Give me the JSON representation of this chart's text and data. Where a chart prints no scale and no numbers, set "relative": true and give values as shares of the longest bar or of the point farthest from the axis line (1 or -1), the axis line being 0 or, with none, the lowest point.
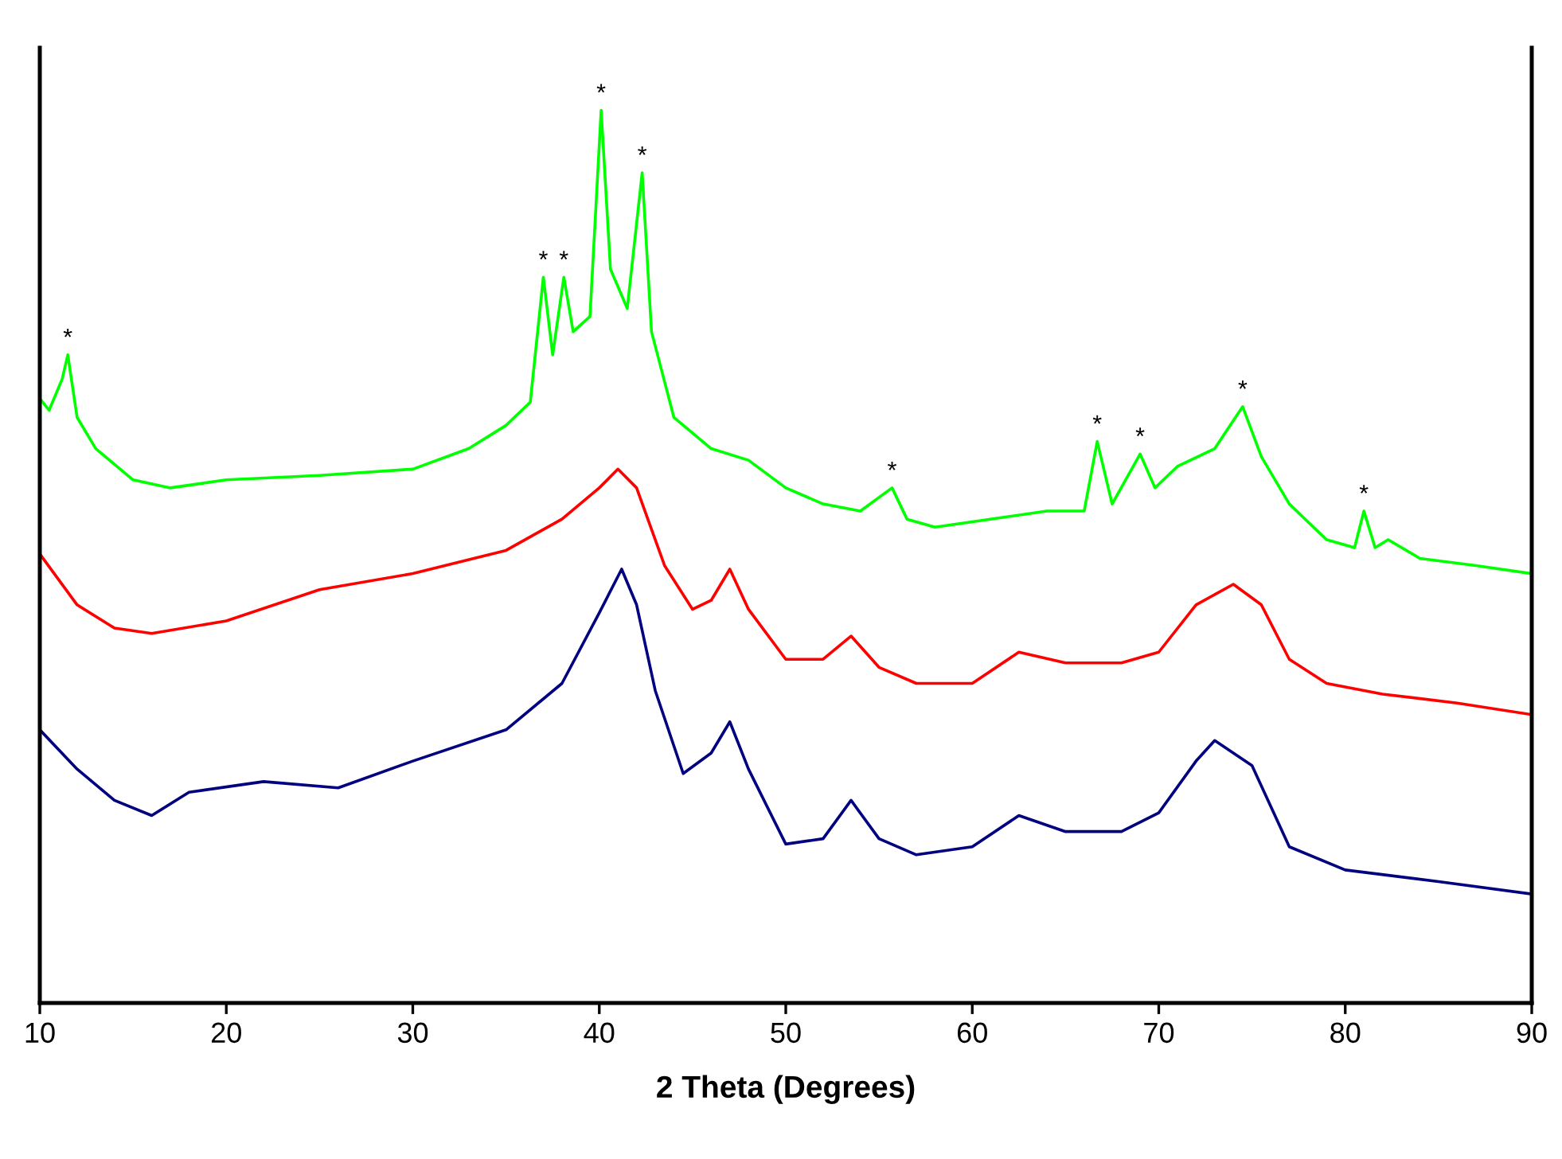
{
  "chart_data": {
    "type": "line",
    "xlabel": "2 Theta (Degrees)",
    "relative": true,
    "xlim": [
      10,
      90
    ],
    "xticks": [
      10,
      20,
      30,
      40,
      50,
      60,
      70,
      80,
      90
    ],
    "tick_labels": "x",
    "grid": false,
    "legend": false,
    "marker": "none",
    "line_style": "solid",
    "series": [
      {
        "color": "#00ff00",
        "x": [
          10,
          10.5,
          11.2,
          11.5,
          12,
          13,
          15,
          17,
          20,
          25,
          30,
          33,
          35,
          36.3,
          37,
          37.5,
          38.1,
          38.6,
          39.5,
          40.1,
          40.6,
          41.5,
          42.3,
          42.8,
          44,
          46,
          48,
          50,
          52,
          54,
          55.7,
          56.5,
          58,
          62,
          64,
          66,
          66.7,
          67.5,
          69,
          69.8,
          71,
          73,
          74.5,
          75.5,
          77,
          79,
          80.5,
          81,
          81.6,
          82.3,
          84,
          87,
          90
        ],
        "values": [
          0.677,
          0.664,
          0.699,
          0.726,
          0.656,
          0.621,
          0.586,
          0.577,
          0.586,
          0.591,
          0.598,
          0.621,
          0.647,
          0.673,
          0.813,
          0.726,
          0.813,
          0.752,
          0.769,
          1.0,
          0.822,
          0.778,
          0.93,
          0.752,
          0.656,
          0.621,
          0.608,
          0.577,
          0.559,
          0.551,
          0.577,
          0.542,
          0.533,
          0.545,
          0.551,
          0.551,
          0.629,
          0.559,
          0.615,
          0.577,
          0.601,
          0.621,
          0.668,
          0.612,
          0.559,
          0.519,
          0.51,
          0.551,
          0.51,
          0.519,
          0.498,
          0.49,
          0.481
        ]
      },
      {
        "color": "#ff0000",
        "x": [
          10,
          12,
          14,
          16,
          20,
          25,
          30,
          35,
          38,
          40,
          41,
          42,
          43.5,
          45,
          46,
          47,
          48,
          50,
          52,
          53.5,
          55,
          57,
          60,
          62.5,
          65,
          68,
          70,
          72,
          74,
          75.5,
          77,
          79,
          82,
          86,
          90
        ],
        "values": [
          0.503,
          0.446,
          0.42,
          0.414,
          0.428,
          0.463,
          0.481,
          0.507,
          0.542,
          0.577,
          0.598,
          0.577,
          0.49,
          0.441,
          0.451,
          0.486,
          0.441,
          0.385,
          0.385,
          0.411,
          0.376,
          0.358,
          0.358,
          0.393,
          0.381,
          0.381,
          0.393,
          0.446,
          0.469,
          0.446,
          0.385,
          0.358,
          0.346,
          0.336,
          0.323
        ]
      },
      {
        "color": "#000080",
        "x": [
          10,
          12,
          14,
          16,
          18,
          22,
          26,
          30,
          35,
          38,
          40,
          41.2,
          42,
          43,
          44.5,
          46,
          47,
          48,
          50,
          52,
          53.5,
          55,
          57,
          60,
          62.5,
          65,
          68,
          70,
          72,
          73,
          75,
          77,
          80,
          85,
          90
        ],
        "values": [
          0.306,
          0.262,
          0.227,
          0.21,
          0.236,
          0.248,
          0.241,
          0.271,
          0.306,
          0.358,
          0.437,
          0.486,
          0.446,
          0.35,
          0.257,
          0.28,
          0.315,
          0.262,
          0.178,
          0.184,
          0.227,
          0.184,
          0.166,
          0.175,
          0.21,
          0.192,
          0.192,
          0.213,
          0.271,
          0.294,
          0.266,
          0.175,
          0.149,
          0.136,
          0.122
        ]
      }
    ],
    "annotations": [
      {
        "text": "*",
        "x": 11.5,
        "y": 0.726
      },
      {
        "text": "*",
        "x": 37,
        "y": 0.813
      },
      {
        "text": "*",
        "x": 38.1,
        "y": 0.813
      },
      {
        "text": "*",
        "x": 40.1,
        "y": 1.0
      },
      {
        "text": "*",
        "x": 42.3,
        "y": 0.93
      },
      {
        "text": "*",
        "x": 55.7,
        "y": 0.577
      },
      {
        "text": "*",
        "x": 66.7,
        "y": 0.629
      },
      {
        "text": "*",
        "x": 69,
        "y": 0.615
      },
      {
        "text": "*",
        "x": 74.5,
        "y": 0.668
      },
      {
        "text": "*",
        "x": 81,
        "y": 0.551
      }
    ]
  }
}
